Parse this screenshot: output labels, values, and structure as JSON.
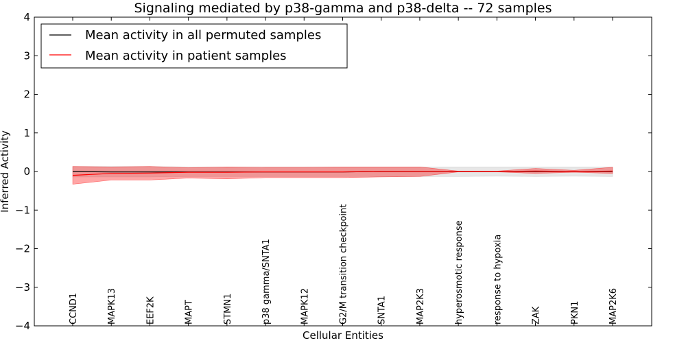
{
  "chart_data": {
    "type": "line",
    "title": "Signaling mediated by p38-gamma and p38-delta -- 72 samples",
    "xlabel": "Cellular Entities",
    "ylabel": "Inferred Activity",
    "ylim": [
      -4,
      4
    ],
    "yticks": [
      4,
      3,
      2,
      1,
      0,
      -1,
      -2,
      -3,
      -4
    ],
    "ytick_labels": [
      "4",
      "3",
      "2",
      "1",
      "0",
      "−1",
      "−2",
      "−3",
      "−4"
    ],
    "categories": [
      "CCND1",
      "MAPK13",
      "EEF2K",
      "MAPT",
      "STMN1",
      "p38 gamma/SNTA1",
      "MAPK12",
      "G2/M transition checkpoint",
      "SNTA1",
      "MAP2K3",
      "hyperosmotic response",
      "response to hypoxia",
      "ZAK",
      "PKN1",
      "MAP2K6"
    ],
    "legend_position": "top-left",
    "series": [
      {
        "name": "Mean activity in all permuted samples",
        "color": "#000000",
        "band_color": "#bbbbbb",
        "values": [
          0.0,
          -0.01,
          -0.01,
          -0.01,
          -0.01,
          -0.01,
          -0.01,
          -0.01,
          0.0,
          0.0,
          0.0,
          0.0,
          0.0,
          0.0,
          0.0
        ],
        "band_low": [
          -0.14,
          -0.14,
          -0.14,
          -0.13,
          -0.13,
          -0.13,
          -0.13,
          -0.13,
          -0.13,
          -0.13,
          -0.13,
          -0.12,
          -0.13,
          -0.12,
          -0.13
        ],
        "band_high": [
          0.13,
          0.13,
          0.13,
          0.12,
          0.12,
          0.12,
          0.12,
          0.12,
          0.12,
          0.12,
          0.12,
          0.12,
          0.12,
          0.12,
          0.12
        ]
      },
      {
        "name": "Mean activity in patient samples",
        "color": "#ff0000",
        "band_color": "#ff0000",
        "values": [
          -0.1,
          -0.05,
          -0.04,
          -0.02,
          -0.02,
          -0.01,
          -0.01,
          -0.01,
          0.0,
          0.0,
          0.0,
          0.0,
          0.01,
          0.0,
          0.01
        ],
        "band_low": [
          -0.33,
          -0.22,
          -0.22,
          -0.17,
          -0.19,
          -0.16,
          -0.16,
          -0.16,
          -0.14,
          -0.13,
          -0.01,
          -0.01,
          -0.05,
          -0.02,
          -0.05
        ],
        "band_high": [
          0.13,
          0.12,
          0.13,
          0.1,
          0.12,
          0.11,
          0.11,
          0.12,
          0.12,
          0.12,
          0.01,
          0.01,
          0.08,
          0.03,
          0.11
        ]
      }
    ]
  }
}
